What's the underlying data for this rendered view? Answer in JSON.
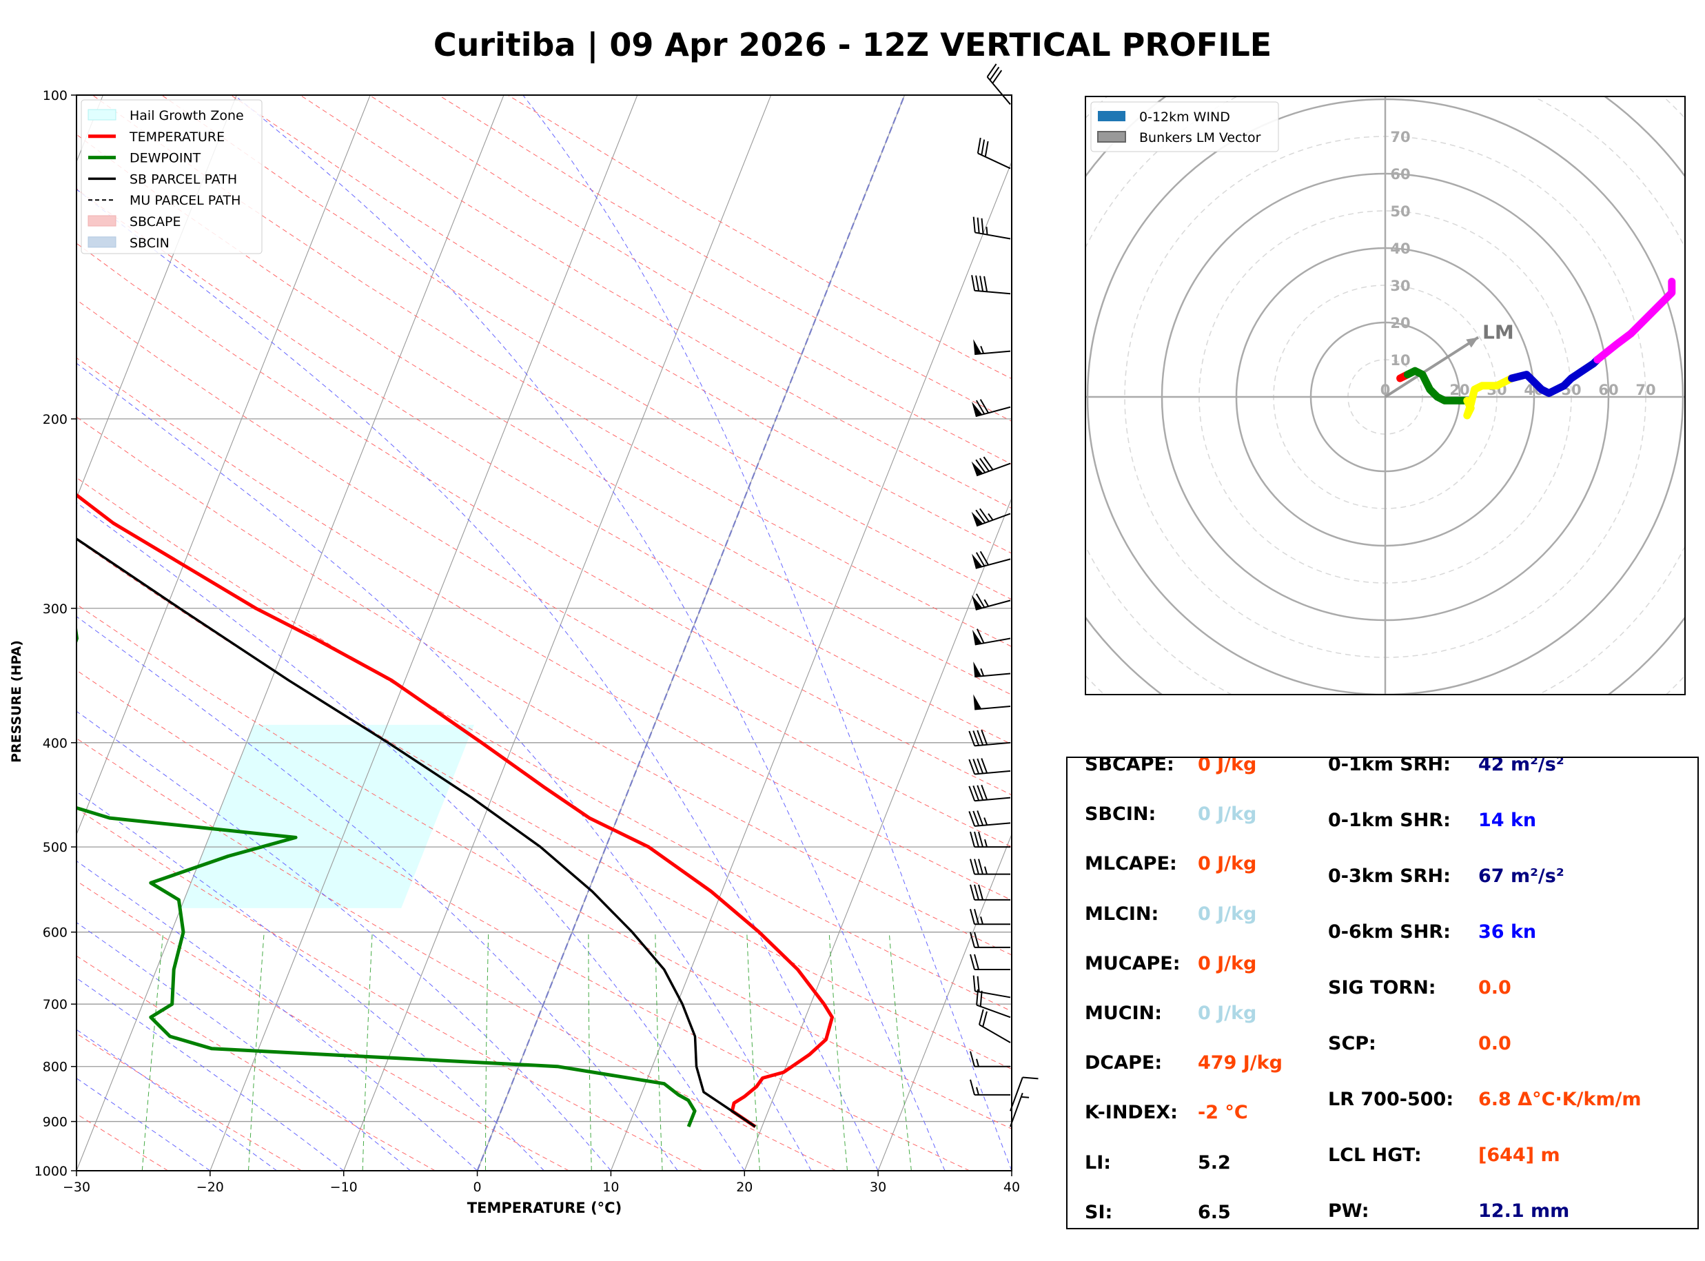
{
  "title": "Curitiba | 09 Apr 2026 - 12Z VERTICAL PROFILE",
  "colors": {
    "temperature": "#ff0000",
    "dewpoint": "#008000",
    "sb_parcel": "#000000",
    "hail_zone": "#e0ffff",
    "isotherm": "#999999",
    "dry_adiabat": "#ff6666",
    "moist_adiabat": "#6666ff",
    "mixing_ratio": "#44aa44",
    "hodo_0_1": "#ff0000",
    "hodo_1_3": "#008000",
    "hodo_3_6": "#ffff00",
    "hodo_6_9": "#0000cd",
    "hodo_9_12": "#ff00ff",
    "label_red": "#ff4500",
    "label_lightblue": "#add8e6",
    "label_navy": "#000080",
    "label_blue": "#0000ff"
  },
  "chart_data": [
    {
      "type": "line",
      "name": "skew-t",
      "xlabel": "TEMPERATURE (°C)",
      "ylabel": "PRESSURE (HPA)",
      "xlim": [
        -30,
        40
      ],
      "ylim": [
        1000,
        100
      ],
      "y_scale": "log",
      "x_ticks": [
        "−30",
        "−20",
        "−10",
        "0",
        "10",
        "20",
        "30",
        "40"
      ],
      "y_ticks": [
        "100",
        "200",
        "300",
        "400",
        "500",
        "600",
        "700",
        "800",
        "900",
        "1000"
      ],
      "legend_position": "top-left",
      "legend": [
        "Hail Growth Zone",
        "TEMPERATURE",
        "DEWPOINT",
        "SB PARCEL PATH",
        "MU PARCEL PATH",
        "SBCAPE",
        "SBCIN"
      ],
      "series": [
        {
          "name": "TEMPERATURE",
          "points": [
            [
              910,
              19.5
            ],
            [
              880,
              17.3
            ],
            [
              865,
              17.2
            ],
            [
              853,
              17.8
            ],
            [
              835,
              18.4
            ],
            [
              820,
              18.6
            ],
            [
              810,
              20.0
            ],
            [
              780,
              21.4
            ],
            [
              755,
              22.2
            ],
            [
              720,
              22.0
            ],
            [
              700,
              21.0
            ],
            [
              650,
              18.0
            ],
            [
              600,
              14.0
            ],
            [
              550,
              9.2
            ],
            [
              500,
              3.2
            ],
            [
              470,
              -2.1
            ],
            [
              440,
              -6.4
            ],
            [
              400,
              -12.4
            ],
            [
              350,
              -21.0
            ],
            [
              320,
              -28.0
            ],
            [
              300,
              -33.3
            ],
            [
              250,
              -46.5
            ],
            [
              215,
              -55.5
            ],
            [
              195,
              -58.3
            ],
            [
              160,
              -59.2
            ],
            [
              120,
              -62.8
            ],
            [
              100,
              -67.5
            ]
          ]
        },
        {
          "name": "DEWPOINT",
          "points": [
            [
              910,
              14.5
            ],
            [
              880,
              14.5
            ],
            [
              860,
              13.7
            ],
            [
              850,
              12.8
            ],
            [
              830,
              11.4
            ],
            [
              800,
              2.9
            ],
            [
              770,
              -23.5
            ],
            [
              750,
              -27.0
            ],
            [
              720,
              -29.0
            ],
            [
              700,
              -27.8
            ],
            [
              650,
              -28.7
            ],
            [
              600,
              -29.1
            ],
            [
              560,
              -30.4
            ],
            [
              540,
              -33.0
            ],
            [
              510,
              -28.0
            ],
            [
              490,
              -23.5
            ],
            [
              470,
              -38.0
            ],
            [
              440,
              -46.5
            ],
            [
              410,
              -46.5
            ],
            [
              360,
              -45.6
            ],
            [
              320,
              -45.8
            ],
            [
              300,
              -47.0
            ],
            [
              250,
              -51.0
            ],
            [
              235,
              -53.0
            ],
            [
              210,
              -57.0
            ],
            [
              190,
              -62.0
            ],
            [
              175,
              -63.0
            ],
            [
              155,
              -64.5
            ],
            [
              140,
              -63.0
            ],
            [
              130,
              -62.5
            ],
            [
              120,
              -61.0
            ],
            [
              100,
              -69.0
            ]
          ]
        },
        {
          "name": "SB PARCEL PATH",
          "points": [
            [
              910,
              19.5
            ],
            [
              845,
              14.6
            ],
            [
              800,
              13.3
            ],
            [
              750,
              12.3
            ],
            [
              700,
              10.4
            ],
            [
              650,
              8.0
            ],
            [
              600,
              4.5
            ],
            [
              550,
              0.3
            ],
            [
              500,
              -4.9
            ],
            [
              450,
              -11.5
            ],
            [
              400,
              -19.4
            ],
            [
              350,
              -28.7
            ],
            [
              300,
              -39.0
            ],
            [
              250,
              -51.0
            ],
            [
              200,
              -65.0
            ],
            [
              150,
              -80.0
            ],
            [
              110,
              -90.0
            ],
            [
              100,
              -93.0
            ]
          ]
        }
      ],
      "hail_growth_zone": {
        "from_hpa": 570,
        "to_hpa": 385
      },
      "wind_barbs_kt": [
        {
          "p": 910,
          "spd": 5,
          "dir": 20
        },
        {
          "p": 880,
          "spd": 10,
          "dir": 20
        },
        {
          "p": 850,
          "spd": 15,
          "dir": 270
        },
        {
          "p": 800,
          "spd": 15,
          "dir": 270
        },
        {
          "p": 760,
          "spd": 20,
          "dir": 300
        },
        {
          "p": 720,
          "spd": 20,
          "dir": 290
        },
        {
          "p": 690,
          "spd": 20,
          "dir": 280
        },
        {
          "p": 650,
          "spd": 20,
          "dir": 270
        },
        {
          "p": 620,
          "spd": 20,
          "dir": 270
        },
        {
          "p": 590,
          "spd": 25,
          "dir": 270
        },
        {
          "p": 560,
          "spd": 30,
          "dir": 270
        },
        {
          "p": 530,
          "spd": 35,
          "dir": 270
        },
        {
          "p": 500,
          "spd": 35,
          "dir": 270
        },
        {
          "p": 475,
          "spd": 35,
          "dir": 265
        },
        {
          "p": 450,
          "spd": 40,
          "dir": 265
        },
        {
          "p": 425,
          "spd": 40,
          "dir": 265
        },
        {
          "p": 400,
          "spd": 40,
          "dir": 265
        },
        {
          "p": 370,
          "spd": 50,
          "dir": 265
        },
        {
          "p": 345,
          "spd": 55,
          "dir": 265
        },
        {
          "p": 320,
          "spd": 60,
          "dir": 260
        },
        {
          "p": 295,
          "spd": 65,
          "dir": 255
        },
        {
          "p": 270,
          "spd": 70,
          "dir": 255
        },
        {
          "p": 245,
          "spd": 75,
          "dir": 250
        },
        {
          "p": 220,
          "spd": 80,
          "dir": 250
        },
        {
          "p": 195,
          "spd": 70,
          "dir": 255
        },
        {
          "p": 173,
          "spd": 55,
          "dir": 265
        },
        {
          "p": 153,
          "spd": 40,
          "dir": 275
        },
        {
          "p": 136,
          "spd": 35,
          "dir": 280
        },
        {
          "p": 117,
          "spd": 30,
          "dir": 295
        },
        {
          "p": 102,
          "spd": 30,
          "dir": 320
        }
      ]
    },
    {
      "type": "line",
      "name": "hodograph",
      "legend_position": "top-left",
      "legend": [
        "0-12km WIND",
        "Bunkers LM Vector"
      ],
      "ring_labels": [
        "10",
        "20",
        "30",
        "40",
        "50",
        "60",
        "70"
      ],
      "axis_labels": [
        "0",
        "20",
        "30",
        "40",
        "50",
        "60",
        "70"
      ],
      "lm_label": "LM",
      "lm_vector_kt": {
        "u": 25,
        "v": 16
      },
      "segments": [
        {
          "layer": "0-1km",
          "colorKey": "hodo_0_1",
          "points": [
            [
              4,
              5
            ],
            [
              6,
              6
            ]
          ]
        },
        {
          "layer": "1-3km",
          "colorKey": "hodo_1_3",
          "points": [
            [
              6,
              6
            ],
            [
              8,
              7
            ],
            [
              10,
              6
            ],
            [
              11,
              4
            ],
            [
              12,
              2
            ],
            [
              13,
              1
            ],
            [
              14,
              0
            ],
            [
              16,
              -1
            ],
            [
              18,
              -1
            ],
            [
              20,
              -1
            ],
            [
              22,
              -1
            ]
          ]
        },
        {
          "layer": "3-6km",
          "colorKey": "hodo_3_6",
          "points": [
            [
              22,
              -1
            ],
            [
              23,
              -3
            ],
            [
              22,
              -5
            ],
            [
              23,
              -2
            ],
            [
              24,
              2
            ],
            [
              26,
              3
            ],
            [
              30,
              3
            ],
            [
              34,
              5
            ]
          ]
        },
        {
          "layer": "6-9km",
          "colorKey": "hodo_6_9",
          "points": [
            [
              34,
              5
            ],
            [
              38,
              6
            ],
            [
              40,
              4
            ],
            [
              42,
              2
            ],
            [
              44,
              1
            ],
            [
              46,
              2
            ],
            [
              48,
              3
            ],
            [
              50,
              5
            ],
            [
              53,
              7
            ],
            [
              56,
              9
            ],
            [
              57,
              10
            ]
          ]
        },
        {
          "layer": "9-12km",
          "colorKey": "hodo_9_12",
          "points": [
            [
              57,
              10
            ],
            [
              62,
              14
            ],
            [
              66,
              17
            ],
            [
              70,
              21
            ],
            [
              74,
              25
            ],
            [
              77,
              28
            ],
            [
              77,
              31
            ]
          ]
        }
      ]
    }
  ],
  "params_left": [
    {
      "label": "SBCAPE:",
      "value": "0 J/kg",
      "colorKey": "label_red"
    },
    {
      "label": "SBCIN:",
      "value": "0 J/kg",
      "colorKey": "label_lightblue"
    },
    {
      "label": "MLCAPE:",
      "value": "0 J/kg",
      "colorKey": "label_red"
    },
    {
      "label": "MLCIN:",
      "value": "0 J/kg",
      "colorKey": "label_lightblue"
    },
    {
      "label": "MUCAPE:",
      "value": "0 J/kg",
      "colorKey": "label_red"
    },
    {
      "label": "MUCIN:",
      "value": "0 J/kg",
      "colorKey": "label_lightblue"
    },
    {
      "label": "DCAPE:",
      "value": "479 J/kg",
      "colorKey": "label_red"
    },
    {
      "label": "K-INDEX:",
      "value": "-2 °C",
      "colorKey": "label_red"
    },
    {
      "label": "LI:",
      "value": "5.2",
      "colorKey": "black"
    },
    {
      "label": "SI:",
      "value": "6.5",
      "colorKey": "black"
    }
  ],
  "params_right": [
    {
      "label": "0-1km SRH:",
      "value": "42 m²/s²",
      "colorKey": "label_navy"
    },
    {
      "label": "0-1km SHR:",
      "value": "14 kn",
      "colorKey": "label_blue"
    },
    {
      "label": "0-3km SRH:",
      "value": "67 m²/s²",
      "colorKey": "label_navy"
    },
    {
      "label": "0-6km SHR:",
      "value": "36 kn",
      "colorKey": "label_blue"
    },
    {
      "label": "SIG TORN:",
      "value": "0.0",
      "colorKey": "label_red"
    },
    {
      "label": "SCP:",
      "value": "0.0",
      "colorKey": "label_red"
    },
    {
      "label": "LR 700-500:",
      "value": "6.8 Δ°C·K/km/m",
      "colorKey": "label_red"
    },
    {
      "label": "LCL HGT:",
      "value": "[644] m",
      "colorKey": "label_red"
    },
    {
      "label": "PW:",
      "value": "12.1 mm",
      "colorKey": "label_navy"
    }
  ]
}
